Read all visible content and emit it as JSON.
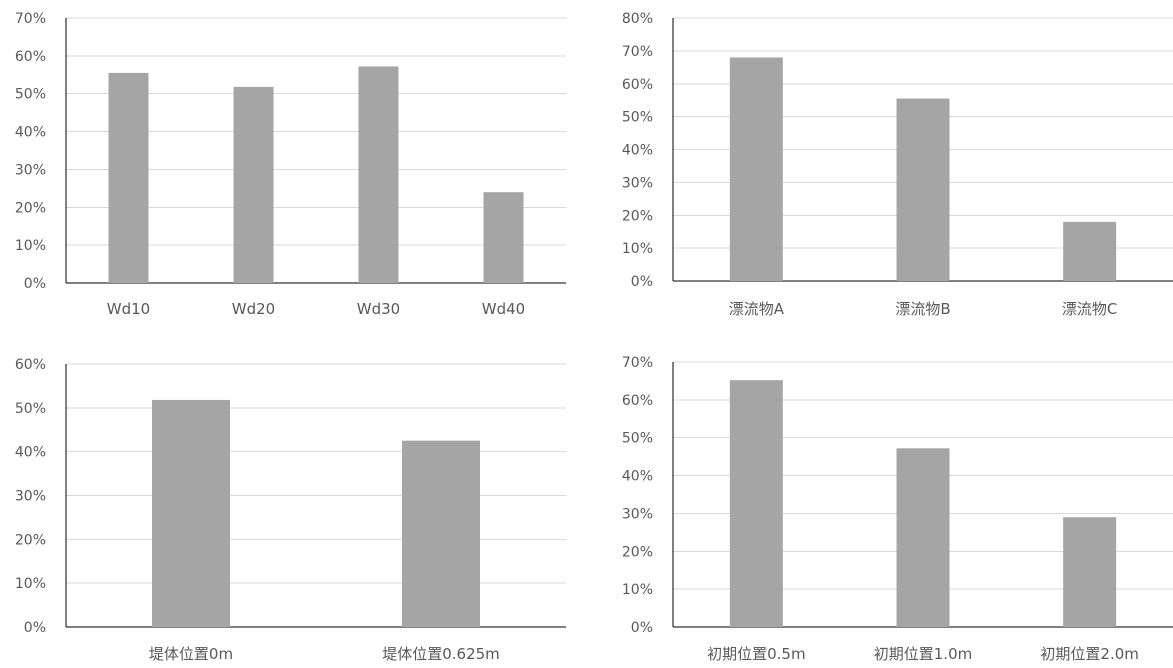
{
  "bar_color": "#a5a5a5",
  "chart_data": [
    {
      "type": "bar",
      "categories": [
        "Wd10",
        "Wd20",
        "Wd30",
        "Wd40"
      ],
      "values": [
        55.5,
        51.8,
        57.2,
        24.0
      ],
      "unit": "%",
      "ylim": [
        0,
        70
      ],
      "yticks": [
        "0%",
        "10%",
        "20%",
        "30%",
        "40%",
        "50%",
        "60%",
        "70%"
      ],
      "grid": true
    },
    {
      "type": "bar",
      "categories": [
        "漂流物A",
        "漂流物B",
        "漂流物C"
      ],
      "values": [
        68.0,
        55.5,
        18.0
      ],
      "unit": "%",
      "ylim": [
        0,
        80
      ],
      "yticks": [
        "0%",
        "10%",
        "20%",
        "30%",
        "40%",
        "50%",
        "60%",
        "70%",
        "80%"
      ],
      "grid": true
    },
    {
      "type": "bar",
      "categories": [
        "堤体位置0m",
        "堤体位置0.625m"
      ],
      "values": [
        51.8,
        42.5
      ],
      "unit": "%",
      "ylim": [
        0,
        60
      ],
      "yticks": [
        "0%",
        "10%",
        "20%",
        "30%",
        "40%",
        "50%",
        "60%"
      ],
      "grid": true
    },
    {
      "type": "bar",
      "categories": [
        "初期位置0.5m",
        "初期位置1.0m",
        "初期位置2.0m"
      ],
      "values": [
        65.2,
        47.2,
        29.0
      ],
      "unit": "%",
      "ylim": [
        0,
        70
      ],
      "yticks": [
        "0%",
        "10%",
        "20%",
        "30%",
        "40%",
        "50%",
        "60%",
        "70%"
      ],
      "grid": true
    }
  ]
}
